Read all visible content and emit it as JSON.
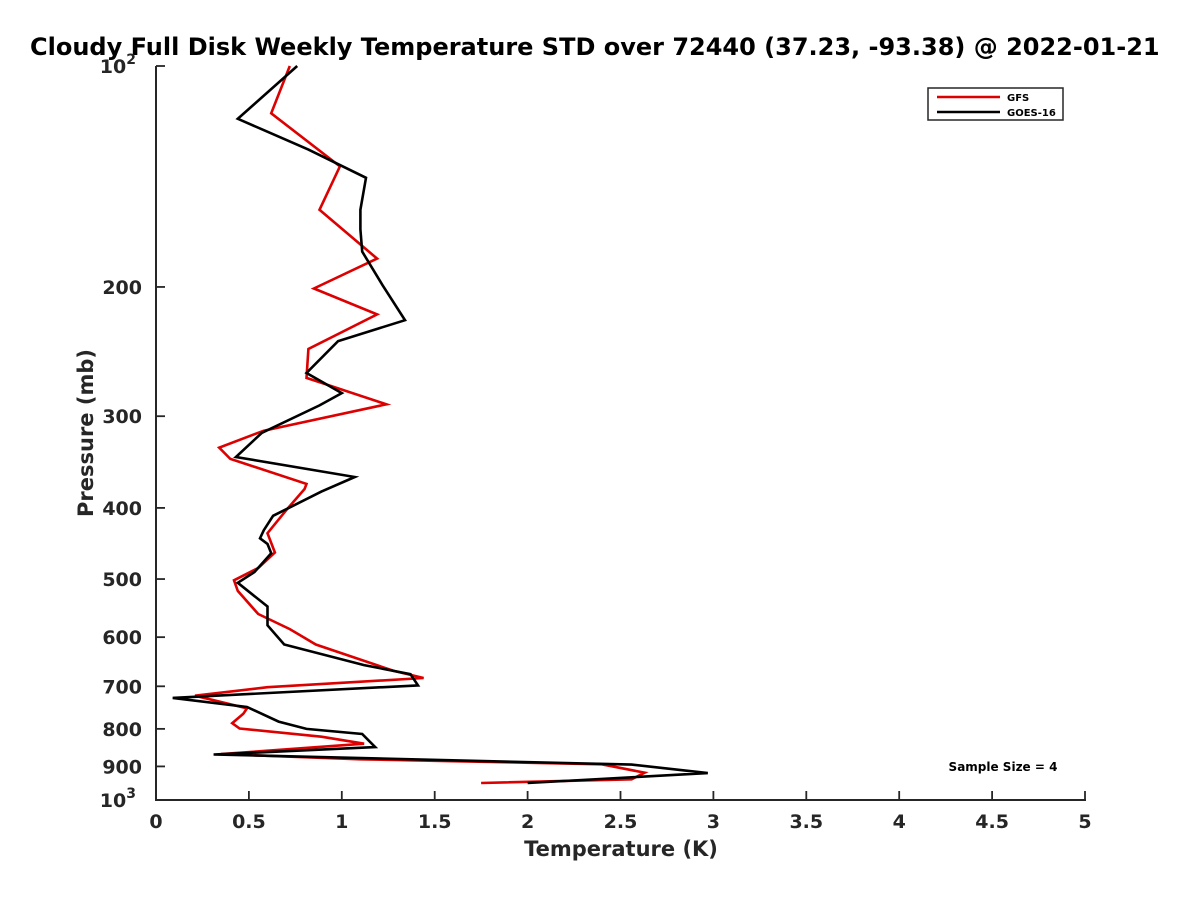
{
  "chart_data": {
    "type": "line",
    "title": "Cloudy Full Disk Weekly Temperature STD over 72440 (37.23, -93.38) @ 2022-01-21",
    "xlabel": "Temperature (K)",
    "ylabel": "Pressure (mb)",
    "xlim": [
      0,
      5
    ],
    "ylim": [
      1000,
      100
    ],
    "y_scale": "log",
    "y_reversed": true,
    "grid": false,
    "legend_position": "top-right",
    "x_ticks": [
      {
        "value": 0,
        "label": "0"
      },
      {
        "value": 0.5,
        "label": "0.5"
      },
      {
        "value": 1,
        "label": "1"
      },
      {
        "value": 1.5,
        "label": "1.5"
      },
      {
        "value": 2,
        "label": "2"
      },
      {
        "value": 2.5,
        "label": "2.5"
      },
      {
        "value": 3,
        "label": "3"
      },
      {
        "value": 3.5,
        "label": "3.5"
      },
      {
        "value": 4,
        "label": "4"
      },
      {
        "value": 4.5,
        "label": "4.5"
      },
      {
        "value": 5,
        "label": "5"
      }
    ],
    "y_ticks": [
      {
        "value": 100,
        "base": "10",
        "exp": "2"
      },
      {
        "value": 200,
        "base": "200",
        "exp": ""
      },
      {
        "value": 300,
        "base": "300",
        "exp": ""
      },
      {
        "value": 400,
        "base": "400",
        "exp": ""
      },
      {
        "value": 500,
        "base": "500",
        "exp": ""
      },
      {
        "value": 600,
        "base": "600",
        "exp": ""
      },
      {
        "value": 700,
        "base": "700",
        "exp": ""
      },
      {
        "value": 800,
        "base": "800",
        "exp": ""
      },
      {
        "value": 900,
        "base": "900",
        "exp": ""
      },
      {
        "value": 1000,
        "base": "10",
        "exp": "3"
      }
    ],
    "series": [
      {
        "name": "GFS",
        "color": "#dd0000",
        "points": [
          [
            0.72,
            100
          ],
          [
            0.62,
            116
          ],
          [
            0.99,
            137
          ],
          [
            0.88,
            157
          ],
          [
            1.19,
            183
          ],
          [
            0.85,
            201
          ],
          [
            1.19,
            218
          ],
          [
            0.82,
            243
          ],
          [
            0.81,
            266
          ],
          [
            1.24,
            289
          ],
          [
            0.58,
            314
          ],
          [
            0.34,
            331
          ],
          [
            0.4,
            343
          ],
          [
            0.81,
            371
          ],
          [
            0.8,
            377
          ],
          [
            0.7,
            403
          ],
          [
            0.6,
            433
          ],
          [
            0.64,
            460
          ],
          [
            0.55,
            483
          ],
          [
            0.42,
            502
          ],
          [
            0.44,
            519
          ],
          [
            0.55,
            558
          ],
          [
            0.72,
            585
          ],
          [
            0.86,
            614
          ],
          [
            1.28,
            667
          ],
          [
            1.44,
            682
          ],
          [
            0.6,
            702
          ],
          [
            0.21,
            721
          ],
          [
            0.49,
            750
          ],
          [
            0.47,
            763
          ],
          [
            0.41,
            786
          ],
          [
            0.45,
            799
          ],
          [
            0.89,
            820
          ],
          [
            1.12,
            838
          ],
          [
            0.35,
            866
          ],
          [
            1.1,
            880
          ],
          [
            2.4,
            894
          ],
          [
            2.63,
            918
          ],
          [
            2.56,
            937
          ],
          [
            1.75,
            948
          ]
        ]
      },
      {
        "name": "GOES-16",
        "color": "#000000",
        "points": [
          [
            0.76,
            100
          ],
          [
            0.44,
            118
          ],
          [
            0.82,
            130
          ],
          [
            1.13,
            142
          ],
          [
            1.1,
            157
          ],
          [
            1.1,
            167
          ],
          [
            1.11,
            179
          ],
          [
            1.22,
            199
          ],
          [
            1.34,
            222
          ],
          [
            0.98,
            237
          ],
          [
            0.81,
            262
          ],
          [
            1.0,
            279
          ],
          [
            0.88,
            290
          ],
          [
            0.57,
            316
          ],
          [
            0.43,
            341
          ],
          [
            1.07,
            363
          ],
          [
            0.89,
            380
          ],
          [
            0.63,
            410
          ],
          [
            0.58,
            429
          ],
          [
            0.56,
            440
          ],
          [
            0.6,
            448
          ],
          [
            0.62,
            461
          ],
          [
            0.53,
            489
          ],
          [
            0.44,
            506
          ],
          [
            0.6,
            545
          ],
          [
            0.6,
            578
          ],
          [
            0.69,
            614
          ],
          [
            1.12,
            655
          ],
          [
            1.37,
            674
          ],
          [
            1.41,
            698
          ],
          [
            0.09,
            726
          ],
          [
            0.49,
            747
          ],
          [
            0.66,
            782
          ],
          [
            0.81,
            800
          ],
          [
            1.11,
            813
          ],
          [
            1.18,
            847
          ],
          [
            0.31,
            867
          ],
          [
            2.56,
            895
          ],
          [
            2.97,
            919
          ],
          [
            2.0,
            948
          ]
        ]
      }
    ],
    "annotation": "Sample Size = 4"
  }
}
